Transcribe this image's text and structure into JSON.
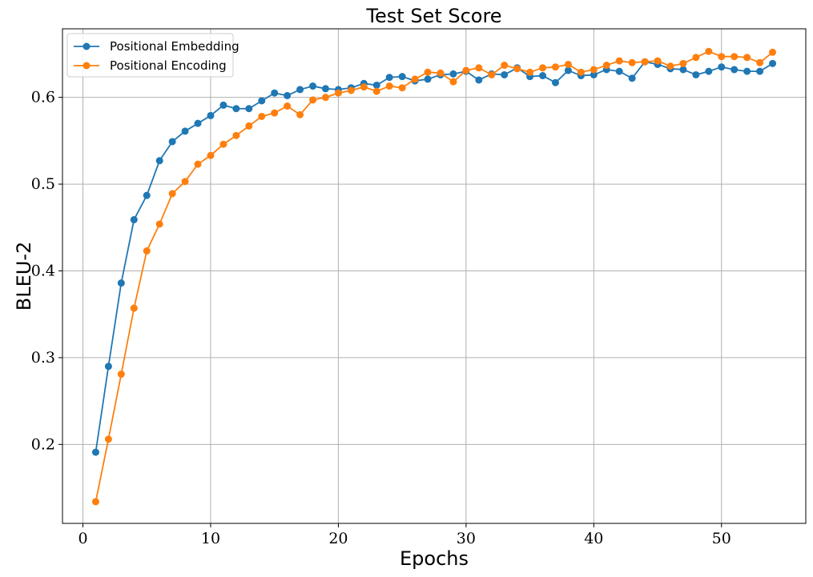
{
  "chart_data": {
    "type": "line",
    "title": "Test Set Score",
    "xlabel": "Epochs",
    "ylabel": "BLEU-2",
    "xlim": [
      -1.6,
      56.6
    ],
    "ylim": [
      0.109,
      0.679
    ],
    "x_ticks": [
      0,
      10,
      20,
      30,
      40,
      50
    ],
    "y_ticks": [
      0.2,
      0.3,
      0.4,
      0.5,
      0.6
    ],
    "x_tick_labels": [
      "0",
      "10",
      "20",
      "30",
      "40",
      "50"
    ],
    "y_tick_labels": [
      "0.2",
      "0.3",
      "0.4",
      "0.5",
      "0.6"
    ],
    "grid": true,
    "legend_position": "top-left",
    "x": [
      1,
      2,
      3,
      4,
      5,
      6,
      7,
      8,
      9,
      10,
      11,
      12,
      13,
      14,
      15,
      16,
      17,
      18,
      19,
      20,
      21,
      22,
      23,
      24,
      25,
      26,
      27,
      28,
      29,
      30,
      31,
      32,
      33,
      34,
      35,
      36,
      37,
      38,
      39,
      40,
      41,
      42,
      43,
      44,
      45,
      46,
      47,
      48,
      49,
      50,
      51,
      52,
      53,
      54
    ],
    "series": [
      {
        "name": "Positional Embedding",
        "color": "#1f77b4",
        "values": [
          0.191,
          0.29,
          0.386,
          0.459,
          0.487,
          0.527,
          0.549,
          0.561,
          0.57,
          0.579,
          0.591,
          0.587,
          0.587,
          0.596,
          0.605,
          0.602,
          0.609,
          0.613,
          0.61,
          0.609,
          0.611,
          0.616,
          0.614,
          0.623,
          0.624,
          0.619,
          0.621,
          0.626,
          0.627,
          0.63,
          0.62,
          0.627,
          0.626,
          0.634,
          0.624,
          0.625,
          0.617,
          0.631,
          0.625,
          0.626,
          0.632,
          0.63,
          0.622,
          0.641,
          0.638,
          0.633,
          0.632,
          0.626,
          0.63,
          0.635,
          0.632,
          0.63,
          0.63,
          0.639
        ]
      },
      {
        "name": "Positional Encoding",
        "color": "#ff7f0e",
        "values": [
          0.134,
          0.206,
          0.281,
          0.357,
          0.423,
          0.454,
          0.489,
          0.503,
          0.523,
          0.533,
          0.546,
          0.556,
          0.567,
          0.578,
          0.582,
          0.59,
          0.58,
          0.597,
          0.6,
          0.605,
          0.608,
          0.612,
          0.607,
          0.613,
          0.611,
          0.621,
          0.629,
          0.628,
          0.618,
          0.631,
          0.634,
          0.626,
          0.637,
          0.633,
          0.629,
          0.634,
          0.635,
          0.638,
          0.629,
          0.632,
          0.637,
          0.642,
          0.64,
          0.641,
          0.642,
          0.636,
          0.639,
          0.646,
          0.653,
          0.647,
          0.647,
          0.646,
          0.64,
          0.652
        ]
      }
    ]
  }
}
